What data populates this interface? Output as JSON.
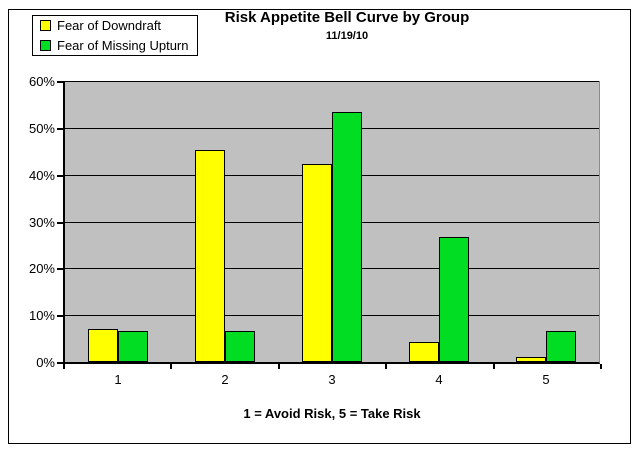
{
  "chart_data": {
    "type": "bar",
    "title": "Risk Appetite Bell Curve by Group",
    "subtitle": "11/19/10",
    "categories": [
      "1",
      "2",
      "3",
      "4",
      "5"
    ],
    "series": [
      {
        "name": "Fear of Downdraft",
        "color": "#FFFF00",
        "values": [
          7.1,
          45.2,
          42.2,
          4.2,
          1.0
        ]
      },
      {
        "name": "Fear of Missing Upturn",
        "color": "#00DD22",
        "values": [
          6.7,
          6.7,
          53.3,
          26.7,
          6.7
        ]
      }
    ],
    "xlabel": "1 = Avoid Risk, 5 = Take Risk",
    "ylabel": "",
    "ylim": [
      0,
      60
    ],
    "ytick_step": 10,
    "ytick_labels": [
      "0%",
      "10%",
      "20%",
      "30%",
      "40%",
      "50%",
      "60%"
    ],
    "legend_position": "top-left",
    "grid": true,
    "plot_bg_color": "#C0C0C0",
    "gridline_color": "#000000",
    "outer_border_color": "#000000"
  }
}
